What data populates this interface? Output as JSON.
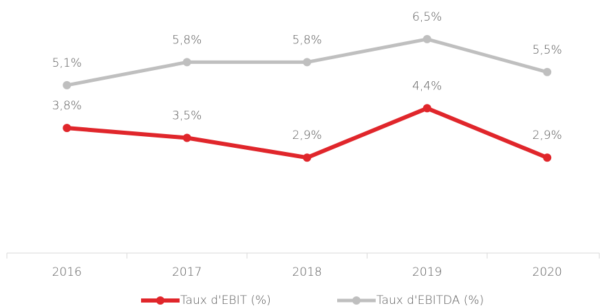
{
  "chart_data": {
    "type": "line",
    "categories": [
      "2016",
      "2017",
      "2018",
      "2019",
      "2020"
    ],
    "series": [
      {
        "name": "Taux d'EBIT (%)",
        "color": "#e0262b",
        "values": [
          3.8,
          3.5,
          2.9,
          4.4,
          2.9
        ],
        "value_labels": [
          "3,8%",
          "3,5%",
          "2,9%",
          "4,4%",
          "2,9%"
        ]
      },
      {
        "name": "Taux d'EBITDA (%)",
        "color": "#bfbfbf",
        "values": [
          5.1,
          5.8,
          5.8,
          6.5,
          5.5
        ],
        "value_labels": [
          "5,1%",
          "5,8%",
          "5,8%",
          "6,5%",
          "5,5%"
        ]
      }
    ],
    "ylim": [
      0,
      7
    ],
    "legend": "bottom"
  }
}
